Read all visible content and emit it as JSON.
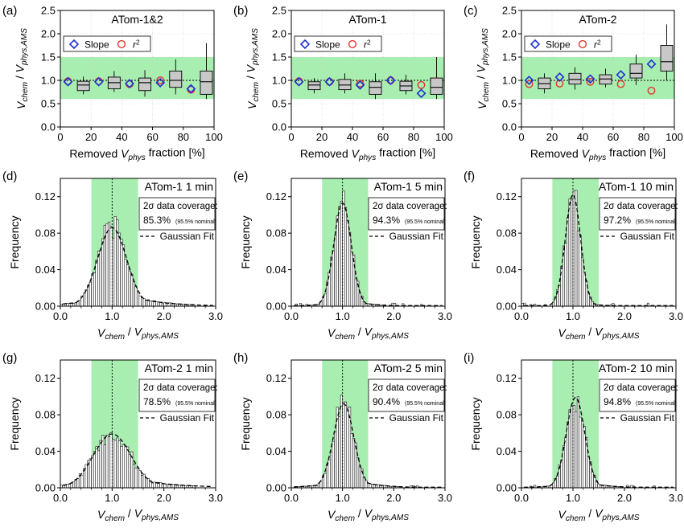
{
  "colors": {
    "band": "#a8eeb0",
    "box_fill": "#c8c8c8",
    "slope_marker": "#1f2fd4",
    "r2_marker": "#e8312a",
    "axis": "#000000"
  },
  "chart_data": [
    {
      "panel": "(a)",
      "type": "box",
      "title": "ATom-1&2",
      "xlabel": "Removed V_phys fraction [%]",
      "ylabel": "V_chem / V_phys,AMS",
      "xlim": [
        0,
        100
      ],
      "ylim": [
        0,
        2.5
      ],
      "xticks": [
        "0",
        "20",
        "40",
        "60",
        "80",
        "100"
      ],
      "yticks": [
        "0.0",
        "0.5",
        "1.0",
        "1.5",
        "2.0",
        "2.5"
      ],
      "band": [
        0.6,
        1.5
      ],
      "reference_y": 1.0,
      "legend": [
        "Slope",
        "r²"
      ],
      "slope_points": {
        "x": [
          5,
          25,
          45,
          65,
          85
        ],
        "y": [
          0.97,
          0.97,
          0.93,
          0.95,
          0.82
        ]
      },
      "r2_points": {
        "x": [
          5,
          25,
          45,
          65,
          85
        ],
        "y": [
          0.98,
          0.98,
          0.92,
          1.0,
          0.8
        ]
      },
      "boxes": [
        {
          "x": 15,
          "whisker_low": 0.7,
          "q1": 0.78,
          "median": 0.9,
          "q3": 0.98,
          "whisker_high": 1.08
        },
        {
          "x": 35,
          "whisker_low": 0.75,
          "q1": 0.82,
          "median": 0.95,
          "q3": 1.07,
          "whisker_high": 1.2
        },
        {
          "x": 55,
          "whisker_low": 0.65,
          "q1": 0.78,
          "median": 0.95,
          "q3": 1.05,
          "whisker_high": 1.22
        },
        {
          "x": 75,
          "whisker_low": 0.7,
          "q1": 0.85,
          "median": 1.0,
          "q3": 1.2,
          "whisker_high": 1.45
        },
        {
          "x": 95,
          "whisker_low": 0.6,
          "q1": 0.7,
          "median": 0.97,
          "q3": 1.2,
          "whisker_high": 1.8
        }
      ]
    },
    {
      "panel": "(b)",
      "type": "box",
      "title": "ATom-1",
      "xlabel": "Removed V_phys fraction [%]",
      "ylabel": "V_chem / V_phys,AMS",
      "xlim": [
        0,
        100
      ],
      "ylim": [
        0,
        2.5
      ],
      "xticks": [
        "0",
        "20",
        "40",
        "60",
        "80",
        "100"
      ],
      "yticks": [
        "0.0",
        "0.5",
        "1.0",
        "1.5",
        "2.0",
        "2.5"
      ],
      "band": [
        0.6,
        1.5
      ],
      "reference_y": 1.0,
      "legend": [
        "Slope",
        "r²"
      ],
      "slope_points": {
        "x": [
          5,
          25,
          45,
          65,
          85
        ],
        "y": [
          0.97,
          0.97,
          0.9,
          1.0,
          0.72
        ]
      },
      "r2_points": {
        "x": [
          5,
          25,
          45,
          65,
          85
        ],
        "y": [
          0.98,
          0.97,
          0.93,
          1.0,
          0.9
        ]
      },
      "boxes": [
        {
          "x": 15,
          "whisker_low": 0.72,
          "q1": 0.8,
          "median": 0.9,
          "q3": 0.97,
          "whisker_high": 1.05
        },
        {
          "x": 35,
          "whisker_low": 0.72,
          "q1": 0.8,
          "median": 0.9,
          "q3": 1.02,
          "whisker_high": 1.15
        },
        {
          "x": 55,
          "whisker_low": 0.6,
          "q1": 0.7,
          "median": 0.85,
          "q3": 0.97,
          "whisker_high": 1.15
        },
        {
          "x": 75,
          "whisker_low": 0.7,
          "q1": 0.78,
          "median": 0.88,
          "q3": 0.98,
          "whisker_high": 1.12
        },
        {
          "x": 95,
          "whisker_low": 0.6,
          "q1": 0.7,
          "median": 0.85,
          "q3": 1.05,
          "whisker_high": 1.5
        }
      ]
    },
    {
      "panel": "(c)",
      "type": "box",
      "title": "ATom-2",
      "xlabel": "Removed V_phys fraction [%]",
      "ylabel": "V_chem / V_phys,AMS",
      "xlim": [
        0,
        100
      ],
      "ylim": [
        0,
        2.5
      ],
      "xticks": [
        "0",
        "20",
        "40",
        "60",
        "80",
        "100"
      ],
      "yticks": [
        "0.0",
        "0.5",
        "1.0",
        "1.5",
        "2.0",
        "2.5"
      ],
      "band": [
        0.6,
        1.5
      ],
      "reference_y": 1.0,
      "legend": [
        "Slope",
        "r²"
      ],
      "slope_points": {
        "x": [
          5,
          25,
          45,
          65,
          85
        ],
        "y": [
          1.0,
          1.07,
          1.03,
          1.12,
          1.35
        ]
      },
      "r2_points": {
        "x": [
          5,
          25,
          45,
          65,
          85
        ],
        "y": [
          0.92,
          0.93,
          0.97,
          0.92,
          0.78
        ]
      },
      "boxes": [
        {
          "x": 15,
          "whisker_low": 0.72,
          "q1": 0.82,
          "median": 0.93,
          "q3": 1.05,
          "whisker_high": 1.15
        },
        {
          "x": 35,
          "whisker_low": 0.8,
          "q1": 0.92,
          "median": 1.02,
          "q3": 1.15,
          "whisker_high": 1.28
        },
        {
          "x": 55,
          "whisker_low": 0.85,
          "q1": 0.92,
          "median": 1.03,
          "q3": 1.12,
          "whisker_high": 1.25
        },
        {
          "x": 75,
          "whisker_low": 0.9,
          "q1": 1.05,
          "median": 1.15,
          "q3": 1.35,
          "whisker_high": 1.55
        },
        {
          "x": 95,
          "whisker_low": 1.0,
          "q1": 1.2,
          "median": 1.4,
          "q3": 1.75,
          "whisker_high": 2.2
        }
      ]
    },
    {
      "panel": "(d)",
      "type": "histogram",
      "title": "ATom-1 1 min",
      "xlabel": "V_chem / V_phys,AMS",
      "ylabel": "Frequency",
      "xlim": [
        0,
        3.0
      ],
      "ylim": [
        0,
        0.14
      ],
      "xticks": [
        "0.0",
        "1.0",
        "2.0",
        "3.0"
      ],
      "yticks": [
        "0.00",
        "0.04",
        "0.08",
        "0.12"
      ],
      "band": [
        0.6,
        1.5
      ],
      "coverage_label": "2σ data coverage:",
      "coverage_value": "85.3%",
      "coverage_note": "(95.5% nominal)",
      "fit_label": "Gaussian Fit",
      "fit": {
        "amplitude": 0.086,
        "mean": 1.0,
        "sigma": 0.28,
        "tail": 0.25
      }
    },
    {
      "panel": "(e)",
      "type": "histogram",
      "title": "ATom-1 5 min",
      "xlabel": "V_chem / V_phys,AMS",
      "ylabel": "Frequency",
      "xlim": [
        0,
        3.0
      ],
      "ylim": [
        0,
        0.14
      ],
      "xticks": [
        "0.0",
        "1.0",
        "2.0",
        "3.0"
      ],
      "yticks": [
        "0.00",
        "0.04",
        "0.08",
        "0.12"
      ],
      "band": [
        0.6,
        1.5
      ],
      "coverage_label": "2σ data coverage:",
      "coverage_value": "94.3%",
      "coverage_note": "(95.5% nominal)",
      "fit_label": "Gaussian Fit",
      "fit": {
        "amplitude": 0.113,
        "mean": 1.0,
        "sigma": 0.17,
        "tail": 0.1
      }
    },
    {
      "panel": "(f)",
      "type": "histogram",
      "title": "ATom-1 10 min",
      "xlabel": "V_chem / V_phys,AMS",
      "ylabel": "Frequency",
      "xlim": [
        0,
        3.0
      ],
      "ylim": [
        0,
        0.14
      ],
      "xticks": [
        "0.0",
        "1.0",
        "2.0",
        "3.0"
      ],
      "yticks": [
        "0.00",
        "0.04",
        "0.08",
        "0.12"
      ],
      "band": [
        0.6,
        1.5
      ],
      "coverage_label": "2σ data coverage:",
      "coverage_value": "97.2%",
      "coverage_note": "(95.5% nominal)",
      "fit_label": "Gaussian Fit",
      "fit": {
        "amplitude": 0.122,
        "mean": 1.0,
        "sigma": 0.15,
        "tail": 0.06
      }
    },
    {
      "panel": "(g)",
      "type": "histogram",
      "title": "ATom-2 1 min",
      "xlabel": "V_chem / V_phys,AMS",
      "ylabel": "Frequency",
      "xlim": [
        0,
        3.0
      ],
      "ylim": [
        0,
        0.14
      ],
      "xticks": [
        "0.0",
        "1.0",
        "2.0",
        "3.0"
      ],
      "yticks": [
        "0.00",
        "0.04",
        "0.08",
        "0.12"
      ],
      "band": [
        0.6,
        1.5
      ],
      "coverage_label": "2σ data coverage:",
      "coverage_value": "78.5%",
      "coverage_note": "(95.5% nominal)",
      "fit_label": "Gaussian Fit",
      "fit": {
        "amplitude": 0.059,
        "mean": 1.0,
        "sigma": 0.36,
        "tail": 0.3
      }
    },
    {
      "panel": "(h)",
      "type": "histogram",
      "title": "ATom-2 5 min",
      "xlabel": "V_chem / V_phys,AMS",
      "ylabel": "Frequency",
      "xlim": [
        0,
        3.0
      ],
      "ylim": [
        0,
        0.14
      ],
      "xticks": [
        "0.0",
        "1.0",
        "2.0",
        "3.0"
      ],
      "yticks": [
        "0.00",
        "0.04",
        "0.08",
        "0.12"
      ],
      "band": [
        0.6,
        1.5
      ],
      "coverage_label": "2σ data coverage:",
      "coverage_value": "90.4%",
      "coverage_note": "(95.5% nominal)",
      "fit_label": "Gaussian Fit",
      "fit": {
        "amplitude": 0.092,
        "mean": 1.02,
        "sigma": 0.2,
        "tail": 0.18
      }
    },
    {
      "panel": "(i)",
      "type": "histogram",
      "title": "ATom-2 10 min",
      "xlabel": "V_chem / V_phys,AMS",
      "ylabel": "Frequency",
      "xlim": [
        0,
        3.0
      ],
      "ylim": [
        0,
        0.14
      ],
      "xticks": [
        "0.0",
        "1.0",
        "2.0",
        "3.0"
      ],
      "yticks": [
        "0.00",
        "0.04",
        "0.08",
        "0.12"
      ],
      "band": [
        0.6,
        1.5
      ],
      "coverage_label": "2σ data coverage:",
      "coverage_value": "94.8%",
      "coverage_note": "(95.5% nominal)",
      "fit_label": "Gaussian Fit",
      "fit": {
        "amplitude": 0.099,
        "mean": 1.05,
        "sigma": 0.18,
        "tail": 0.12
      }
    }
  ]
}
